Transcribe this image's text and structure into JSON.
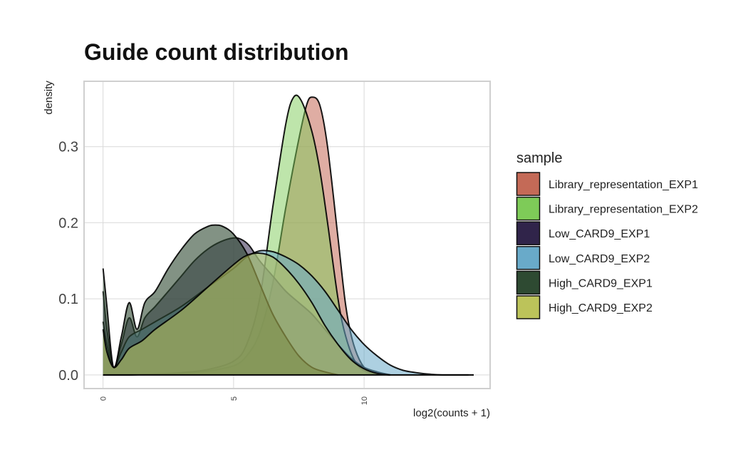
{
  "chart_data": {
    "type": "area",
    "title": "Guide count distribution",
    "xlabel": "log2(counts + 1)",
    "ylabel": "density",
    "xlim": [
      -0.7,
      14.8
    ],
    "ylim": [
      -0.017,
      0.385
    ],
    "xticks": [
      0,
      5,
      10
    ],
    "xtick_labels": [
      "0",
      "5",
      "10"
    ],
    "yticks": [
      0.0,
      0.1,
      0.2,
      0.3
    ],
    "ytick_labels": [
      "0.0",
      "0.1",
      "0.2",
      "0.3"
    ],
    "grid": true,
    "legend_title": "sample",
    "legend_position": "right",
    "series": [
      {
        "name": "Library_representation_EXP1",
        "color": "#c46a57",
        "opacity": 0.55,
        "x": [
          0,
          0.4,
          1,
          2,
          3,
          4,
          5,
          5.5,
          6,
          6.5,
          7,
          7.5,
          7.8,
          8,
          8.3,
          8.6,
          9,
          9.3,
          9.6,
          10,
          10.5,
          11
        ],
        "y": [
          0.0,
          0.0,
          0.0,
          0.001,
          0.002,
          0.005,
          0.012,
          0.025,
          0.055,
          0.12,
          0.22,
          0.31,
          0.355,
          0.365,
          0.355,
          0.3,
          0.18,
          0.09,
          0.04,
          0.01,
          0.002,
          0.0
        ]
      },
      {
        "name": "Library_representation_EXP2",
        "color": "#7ecb58",
        "opacity": 0.5,
        "x": [
          0,
          0.4,
          1,
          2,
          3,
          4,
          5,
          5.5,
          6,
          6.5,
          7,
          7.3,
          7.6,
          8,
          8.3,
          8.6,
          9,
          9.3,
          9.7,
          10.2,
          11
        ],
        "y": [
          0.0,
          0.0,
          0.0,
          0.001,
          0.003,
          0.007,
          0.018,
          0.04,
          0.1,
          0.22,
          0.33,
          0.365,
          0.36,
          0.32,
          0.27,
          0.2,
          0.1,
          0.05,
          0.015,
          0.003,
          0.0
        ]
      },
      {
        "name": "Low_CARD9_EXP1",
        "color": "#30244a",
        "opacity": 0.55,
        "x": [
          0,
          0.15,
          0.4,
          0.7,
          1,
          1.3,
          1.6,
          2,
          2.5,
          3,
          3.5,
          4,
          4.5,
          5,
          5.3,
          5.6,
          6,
          6.5,
          7,
          7.5,
          8,
          8.5,
          9,
          9.5,
          10,
          10.5,
          11
        ],
        "y": [
          0.11,
          0.06,
          0.01,
          0.04,
          0.075,
          0.05,
          0.075,
          0.09,
          0.11,
          0.13,
          0.15,
          0.165,
          0.175,
          0.18,
          0.178,
          0.17,
          0.15,
          0.13,
          0.11,
          0.095,
          0.08,
          0.06,
          0.04,
          0.022,
          0.01,
          0.004,
          0.0
        ]
      },
      {
        "name": "Low_CARD9_EXP2",
        "color": "#69aac9",
        "opacity": 0.55,
        "x": [
          0,
          0.15,
          0.4,
          0.7,
          1,
          1.5,
          2,
          3,
          4,
          5,
          5.5,
          6,
          6.5,
          7,
          7.5,
          8,
          8.5,
          9,
          9.5,
          10,
          10.5,
          11,
          11.5,
          12,
          12.5,
          13,
          14
        ],
        "y": [
          0.07,
          0.04,
          0.01,
          0.03,
          0.05,
          0.06,
          0.07,
          0.09,
          0.115,
          0.14,
          0.155,
          0.163,
          0.162,
          0.155,
          0.145,
          0.13,
          0.11,
          0.085,
          0.06,
          0.04,
          0.025,
          0.013,
          0.006,
          0.003,
          0.001,
          0.0,
          0.0
        ]
      },
      {
        "name": "High_CARD9_EXP1",
        "color": "#2e4a32",
        "opacity": 0.6,
        "x": [
          0,
          0.15,
          0.4,
          0.7,
          1,
          1.3,
          1.6,
          2,
          2.5,
          3,
          3.5,
          4,
          4.3,
          4.6,
          5,
          5.5,
          6,
          6.5,
          7,
          7.5,
          8,
          8.5,
          9
        ],
        "y": [
          0.14,
          0.09,
          0.01,
          0.05,
          0.095,
          0.06,
          0.095,
          0.11,
          0.14,
          0.165,
          0.185,
          0.195,
          0.197,
          0.195,
          0.185,
          0.16,
          0.12,
          0.08,
          0.05,
          0.025,
          0.01,
          0.004,
          0.0
        ]
      },
      {
        "name": "High_CARD9_EXP2",
        "color": "#bcc35a",
        "opacity": 0.55,
        "x": [
          0,
          0.15,
          0.4,
          0.7,
          1,
          1.5,
          2,
          3,
          4,
          5,
          5.5,
          6,
          6.5,
          7,
          7.5,
          8,
          8.5,
          9,
          9.5,
          10,
          10.5,
          11
        ],
        "y": [
          0.06,
          0.03,
          0.01,
          0.02,
          0.035,
          0.045,
          0.06,
          0.085,
          0.115,
          0.145,
          0.157,
          0.16,
          0.155,
          0.14,
          0.12,
          0.095,
          0.065,
          0.04,
          0.02,
          0.008,
          0.002,
          0.0
        ]
      }
    ]
  }
}
